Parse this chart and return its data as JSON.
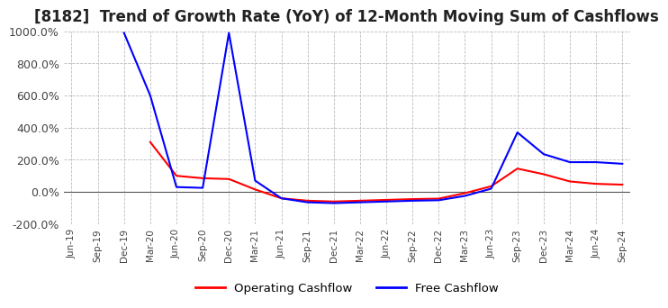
{
  "title": "[8182]  Trend of Growth Rate (YoY) of 12-Month Moving Sum of Cashflows",
  "title_fontsize": 12,
  "ylim": [
    -200,
    1000
  ],
  "yticks": [
    -200,
    0,
    200,
    400,
    600,
    800,
    1000
  ],
  "ytick_labels": [
    "-200.0%",
    "0.0%",
    "200.0%",
    "400.0%",
    "600.0%",
    "800.0%",
    "1000.0%"
  ],
  "background_color": "#ffffff",
  "grid_color": "#bbbbbb",
  "legend_labels": [
    "Operating Cashflow",
    "Free Cashflow"
  ],
  "legend_colors": [
    "#ff0000",
    "#0000ff"
  ],
  "dates": [
    "Jun-19",
    "Sep-19",
    "Dec-19",
    "Mar-20",
    "Jun-20",
    "Sep-20",
    "Dec-20",
    "Mar-21",
    "Jun-21",
    "Sep-21",
    "Dec-21",
    "Mar-22",
    "Jun-22",
    "Sep-22",
    "Dec-22",
    "Mar-23",
    "Jun-23",
    "Sep-23",
    "Dec-23",
    "Mar-24",
    "Jun-24",
    "Sep-24"
  ],
  "operating_cashflow": [
    null,
    null,
    null,
    310,
    100,
    85,
    80,
    15,
    -40,
    -55,
    -60,
    -55,
    -50,
    -45,
    -42,
    -8,
    35,
    145,
    110,
    65,
    50,
    45
  ],
  "free_cashflow": [
    null,
    null,
    990,
    600,
    30,
    25,
    990,
    70,
    -40,
    -65,
    -70,
    -65,
    -60,
    -55,
    -52,
    -25,
    20,
    370,
    235,
    185,
    185,
    175
  ]
}
